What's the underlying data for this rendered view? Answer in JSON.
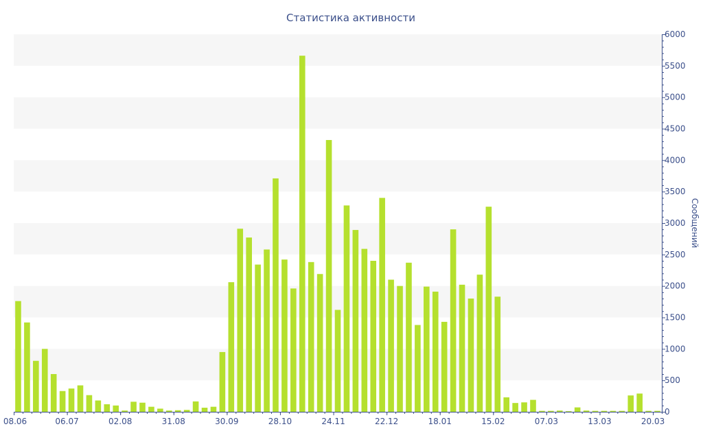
{
  "chart_data": {
    "type": "bar",
    "title": "Статистика активности",
    "xlabel": "",
    "ylabel": "Сообщений",
    "ylim": [
      0,
      6000
    ],
    "yticks": [
      0,
      500,
      1000,
      1500,
      2000,
      2500,
      3000,
      3500,
      4000,
      4500,
      5000,
      5500,
      6000
    ],
    "grid": "alternating horizontal bands",
    "y_axis_side": "right",
    "x_tick_labels": [
      {
        "label": "08.06",
        "index": 0
      },
      {
        "label": "06.07",
        "index": 6
      },
      {
        "label": "02.08",
        "index": 12
      },
      {
        "label": "31.08",
        "index": 18
      },
      {
        "label": "30.09",
        "index": 24
      },
      {
        "label": "28.10",
        "index": 30
      },
      {
        "label": "24.11",
        "index": 36
      },
      {
        "label": "22.12",
        "index": 42
      },
      {
        "label": "18.01",
        "index": 48
      },
      {
        "label": "15.02",
        "index": 54
      },
      {
        "label": "07.03",
        "index": 60
      },
      {
        "label": "13.03",
        "index": 66
      },
      {
        "label": "20.03",
        "index": 72
      }
    ],
    "values": [
      1760,
      1420,
      810,
      1000,
      600,
      330,
      370,
      420,
      265,
      180,
      120,
      100,
      20,
      160,
      145,
      80,
      50,
      20,
      25,
      30,
      165,
      65,
      80,
      950,
      2060,
      2910,
      2770,
      2340,
      2580,
      3710,
      2420,
      1960,
      5660,
      2380,
      2190,
      4320,
      1620,
      3280,
      2890,
      2590,
      2400,
      3400,
      2100,
      2000,
      2370,
      1380,
      1990,
      1910,
      1430,
      2900,
      2020,
      1800,
      2180,
      3260,
      1830,
      230,
      140,
      150,
      190,
      15,
      15,
      20,
      10,
      70,
      20,
      15,
      15,
      15,
      15,
      260,
      290,
      15,
      15
    ],
    "colors": {
      "bar": "#b5e02e",
      "axis_text": "#3b4f8a",
      "band": "#f6f6f6",
      "axis_line": "#3b4f8a"
    }
  }
}
